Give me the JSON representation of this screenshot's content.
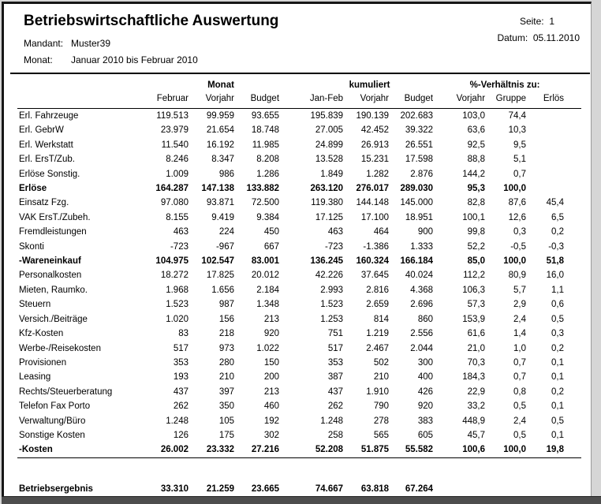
{
  "header": {
    "title": "Betriebswirtschaftliche Auswertung",
    "page_label": "Seite:",
    "page_number": "1",
    "date_label": "Datum:",
    "date_value": "05.11.2010",
    "client_label": "Mandant:",
    "client_value": "Muster39",
    "month_label": "Monat:",
    "month_value": "Januar 2010  bis  Februar 2010"
  },
  "table": {
    "group_headers": [
      "Monat",
      "kumuliert",
      "%-Verhältnis zu:"
    ],
    "column_headers": [
      "Februar",
      "Vorjahr",
      "Budget",
      "Jan-Feb",
      "Vorjahr",
      "Budget",
      "Vorjahr",
      "Gruppe",
      "Erlös"
    ],
    "rows": [
      {
        "label": "Erl. Fahrzeuge",
        "bold": false,
        "values": [
          "119.513",
          "99.959",
          "93.655",
          "195.839",
          "190.139",
          "202.683",
          "103,0",
          "74,4",
          ""
        ]
      },
      {
        "label": "Erl. GebrW",
        "bold": false,
        "values": [
          "23.979",
          "21.654",
          "18.748",
          "27.005",
          "42.452",
          "39.322",
          "63,6",
          "10,3",
          ""
        ]
      },
      {
        "label": "Erl. Werkstatt",
        "bold": false,
        "values": [
          "11.540",
          "16.192",
          "11.985",
          "24.899",
          "26.913",
          "26.551",
          "92,5",
          "9,5",
          ""
        ]
      },
      {
        "label": "Erl. ErsT/Zub.",
        "bold": false,
        "values": [
          "8.246",
          "8.347",
          "8.208",
          "13.528",
          "15.231",
          "17.598",
          "88,8",
          "5,1",
          ""
        ]
      },
      {
        "label": "Erlöse Sonstig.",
        "bold": false,
        "values": [
          "1.009",
          "986",
          "1.286",
          "1.849",
          "1.282",
          "2.876",
          "144,2",
          "0,7",
          ""
        ]
      },
      {
        "label": "Erlöse",
        "bold": true,
        "values": [
          "164.287",
          "147.138",
          "133.882",
          "263.120",
          "276.017",
          "289.030",
          "95,3",
          "100,0",
          ""
        ]
      },
      {
        "label": "Einsatz Fzg.",
        "bold": false,
        "values": [
          "97.080",
          "93.871",
          "72.500",
          "119.380",
          "144.148",
          "145.000",
          "82,8",
          "87,6",
          "45,4"
        ]
      },
      {
        "label": "VAK ErsT./Zubeh.",
        "bold": false,
        "values": [
          "8.155",
          "9.419",
          "9.384",
          "17.125",
          "17.100",
          "18.951",
          "100,1",
          "12,6",
          "6,5"
        ]
      },
      {
        "label": "Fremdleistungen",
        "bold": false,
        "values": [
          "463",
          "224",
          "450",
          "463",
          "464",
          "900",
          "99,8",
          "0,3",
          "0,2"
        ]
      },
      {
        "label": "Skonti",
        "bold": false,
        "values": [
          "-723",
          "-967",
          "667",
          "-723",
          "-1.386",
          "1.333",
          "52,2",
          "-0,5",
          "-0,3"
        ]
      },
      {
        "label": "-Wareneinkauf",
        "bold": true,
        "values": [
          "104.975",
          "102.547",
          "83.001",
          "136.245",
          "160.324",
          "166.184",
          "85,0",
          "100,0",
          "51,8"
        ]
      },
      {
        "label": "Personalkosten",
        "bold": false,
        "values": [
          "18.272",
          "17.825",
          "20.012",
          "42.226",
          "37.645",
          "40.024",
          "112,2",
          "80,9",
          "16,0"
        ]
      },
      {
        "label": "Mieten, Raumko.",
        "bold": false,
        "values": [
          "1.968",
          "1.656",
          "2.184",
          "2.993",
          "2.816",
          "4.368",
          "106,3",
          "5,7",
          "1,1"
        ]
      },
      {
        "label": "Steuern",
        "bold": false,
        "values": [
          "1.523",
          "987",
          "1.348",
          "1.523",
          "2.659",
          "2.696",
          "57,3",
          "2,9",
          "0,6"
        ]
      },
      {
        "label": "Versich./Beiträge",
        "bold": false,
        "values": [
          "1.020",
          "156",
          "213",
          "1.253",
          "814",
          "860",
          "153,9",
          "2,4",
          "0,5"
        ]
      },
      {
        "label": "Kfz-Kosten",
        "bold": false,
        "values": [
          "83",
          "218",
          "920",
          "751",
          "1.219",
          "2.556",
          "61,6",
          "1,4",
          "0,3"
        ]
      },
      {
        "label": "Werbe-/Reisekosten",
        "bold": false,
        "values": [
          "517",
          "973",
          "1.022",
          "517",
          "2.467",
          "2.044",
          "21,0",
          "1,0",
          "0,2"
        ]
      },
      {
        "label": "Provisionen",
        "bold": false,
        "values": [
          "353",
          "280",
          "150",
          "353",
          "502",
          "300",
          "70,3",
          "0,7",
          "0,1"
        ]
      },
      {
        "label": "Leasing",
        "bold": false,
        "values": [
          "193",
          "210",
          "200",
          "387",
          "210",
          "400",
          "184,3",
          "0,7",
          "0,1"
        ]
      },
      {
        "label": "Rechts/Steuerberatung",
        "bold": false,
        "values": [
          "437",
          "397",
          "213",
          "437",
          "1.910",
          "426",
          "22,9",
          "0,8",
          "0,2"
        ]
      },
      {
        "label": "Telefon Fax Porto",
        "bold": false,
        "values": [
          "262",
          "350",
          "460",
          "262",
          "790",
          "920",
          "33,2",
          "0,5",
          "0,1"
        ]
      },
      {
        "label": "Verwaltung/Büro",
        "bold": false,
        "values": [
          "1.248",
          "105",
          "192",
          "1.248",
          "278",
          "383",
          "448,9",
          "2,4",
          "0,5"
        ]
      },
      {
        "label": "Sonstige Kosten",
        "bold": false,
        "values": [
          "126",
          "175",
          "302",
          "258",
          "565",
          "605",
          "45,7",
          "0,5",
          "0,1"
        ]
      },
      {
        "label": "-Kosten",
        "bold": true,
        "rule_below": true,
        "values": [
          "26.002",
          "23.332",
          "27.216",
          "52.208",
          "51.875",
          "55.582",
          "100,6",
          "100,0",
          "19,8"
        ]
      },
      {
        "label": "Betriebsergebnis",
        "bold": true,
        "gap_before": true,
        "rule_below": true,
        "values": [
          "33.310",
          "21.259",
          "23.665",
          "74.667",
          "63.818",
          "67.264",
          "",
          "",
          ""
        ]
      }
    ]
  },
  "colors": {
    "page_bg": "#ffffff",
    "outer_bg": "#d6d6d6",
    "frame": "#161616",
    "bottom_bar": "#4d4d4d",
    "text": "#000000"
  }
}
